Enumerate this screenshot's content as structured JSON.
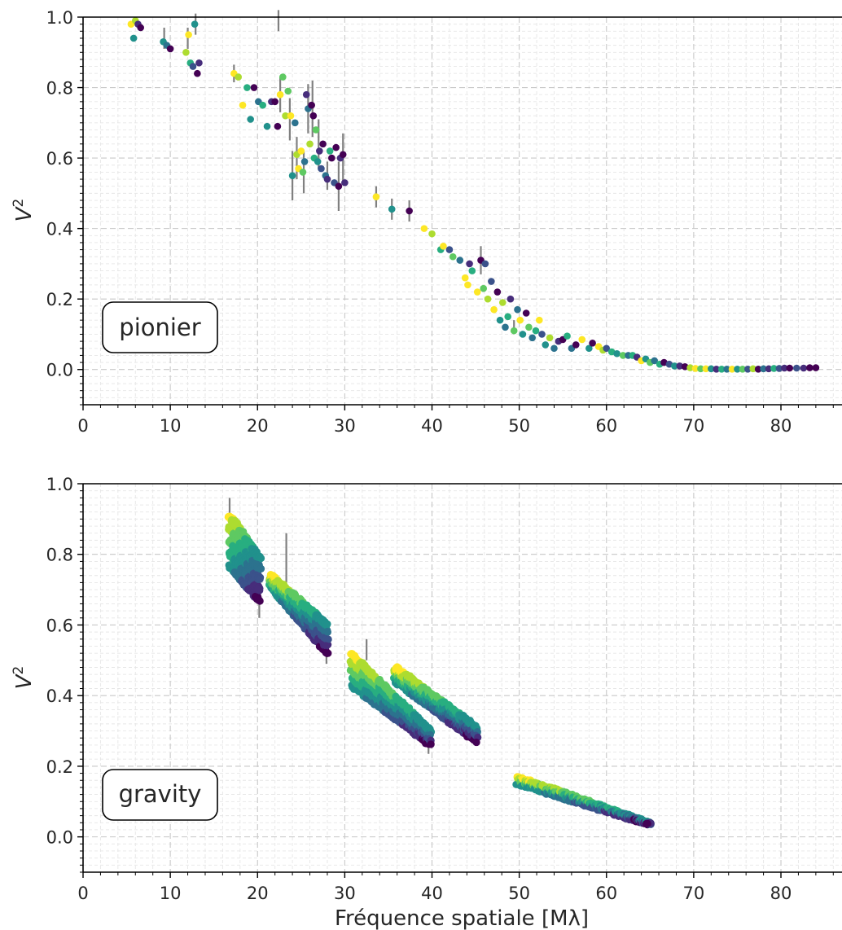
{
  "colors": {
    "errorbar": "#808080",
    "grid_major": "#c8c8c8",
    "grid_minor": "#e6e6e6",
    "axis": "#000000",
    "viridis": [
      "#440154",
      "#472d7b",
      "#3b528b",
      "#2c728e",
      "#21918c",
      "#28ae80",
      "#5ec962",
      "#addc30",
      "#fde725"
    ]
  },
  "chart_data": [
    {
      "type": "scatter",
      "annotation": "pionier",
      "ylabel": "V²",
      "xlabel": "",
      "xlim": [
        0,
        87
      ],
      "ylim": [
        -0.1,
        1.0
      ],
      "x_ticks": [
        "0",
        "10",
        "20",
        "30",
        "40",
        "50",
        "60",
        "70",
        "80"
      ],
      "y_ticks": [
        "0.0",
        "0.2",
        "0.4",
        "0.6",
        "0.8",
        "1.0"
      ],
      "grid": true,
      "colormap": "viridis",
      "points": [
        [
          5.5,
          0.98,
          8
        ],
        [
          5.8,
          0.94,
          4
        ],
        [
          6.0,
          0.99,
          7
        ],
        [
          6.3,
          0.98,
          1
        ],
        [
          6.6,
          0.97,
          0
        ],
        [
          9.2,
          0.93,
          4
        ],
        [
          9.6,
          0.92,
          3
        ],
        [
          10.0,
          0.91,
          0
        ],
        [
          11.8,
          0.9,
          7
        ],
        [
          12.1,
          0.95,
          8
        ],
        [
          12.3,
          0.87,
          5
        ],
        [
          12.6,
          0.86,
          2
        ],
        [
          12.8,
          0.98,
          4
        ],
        [
          13.1,
          0.84,
          0
        ],
        [
          13.3,
          0.87,
          1
        ],
        [
          17.3,
          0.84,
          8
        ],
        [
          17.8,
          0.83,
          7
        ],
        [
          18.3,
          0.75,
          8
        ],
        [
          18.8,
          0.8,
          5
        ],
        [
          19.2,
          0.71,
          4
        ],
        [
          19.6,
          0.8,
          0
        ],
        [
          20.1,
          0.76,
          3
        ],
        [
          20.6,
          0.75,
          5
        ],
        [
          21.1,
          0.69,
          4
        ],
        [
          21.6,
          0.76,
          1
        ],
        [
          22.0,
          0.76,
          0
        ],
        [
          22.3,
          0.69,
          0
        ],
        [
          22.6,
          0.78,
          8
        ],
        [
          22.9,
          0.83,
          6
        ],
        [
          23.2,
          0.72,
          7
        ],
        [
          23.5,
          0.79,
          6
        ],
        [
          23.8,
          0.72,
          8
        ],
        [
          24.0,
          0.55,
          4
        ],
        [
          24.3,
          0.7,
          3
        ],
        [
          24.5,
          0.61,
          7
        ],
        [
          24.7,
          0.57,
          8
        ],
        [
          25.0,
          0.62,
          8
        ],
        [
          25.2,
          0.56,
          6
        ],
        [
          25.4,
          0.59,
          3
        ],
        [
          25.6,
          0.78,
          1
        ],
        [
          25.8,
          0.74,
          3
        ],
        [
          26.0,
          0.64,
          7
        ],
        [
          26.2,
          0.75,
          0
        ],
        [
          26.4,
          0.72,
          0
        ],
        [
          26.5,
          0.6,
          5
        ],
        [
          26.7,
          0.68,
          6
        ],
        [
          26.9,
          0.59,
          4
        ],
        [
          27.1,
          0.62,
          1
        ],
        [
          27.3,
          0.57,
          2
        ],
        [
          27.5,
          0.64,
          0
        ],
        [
          27.8,
          0.55,
          3
        ],
        [
          28.0,
          0.54,
          1
        ],
        [
          28.3,
          0.62,
          5
        ],
        [
          28.5,
          0.6,
          0
        ],
        [
          28.8,
          0.53,
          2
        ],
        [
          29.0,
          0.63,
          0
        ],
        [
          29.3,
          0.52,
          0
        ],
        [
          29.5,
          0.6,
          1
        ],
        [
          29.8,
          0.61,
          0
        ],
        [
          30.0,
          0.53,
          1
        ],
        [
          33.6,
          0.49,
          8
        ],
        [
          35.4,
          0.455,
          4
        ],
        [
          37.4,
          0.45,
          0
        ],
        [
          39.1,
          0.4,
          8
        ],
        [
          40.0,
          0.385,
          7
        ],
        [
          41.0,
          0.34,
          5
        ],
        [
          41.3,
          0.35,
          8
        ],
        [
          42.0,
          0.34,
          2
        ],
        [
          42.4,
          0.32,
          6
        ],
        [
          43.2,
          0.31,
          3
        ],
        [
          43.8,
          0.26,
          8
        ],
        [
          44.1,
          0.24,
          8
        ],
        [
          44.3,
          0.3,
          1
        ],
        [
          44.6,
          0.28,
          5
        ],
        [
          45.2,
          0.22,
          8
        ],
        [
          45.6,
          0.31,
          0
        ],
        [
          45.9,
          0.23,
          6
        ],
        [
          46.1,
          0.3,
          2
        ],
        [
          46.4,
          0.2,
          7
        ],
        [
          46.8,
          0.25,
          2
        ],
        [
          47.1,
          0.17,
          8
        ],
        [
          47.5,
          0.22,
          0
        ],
        [
          47.8,
          0.14,
          4
        ],
        [
          48.1,
          0.19,
          7
        ],
        [
          48.4,
          0.12,
          3
        ],
        [
          48.7,
          0.15,
          5
        ],
        [
          49.0,
          0.2,
          1
        ],
        [
          49.4,
          0.11,
          6
        ],
        [
          49.8,
          0.17,
          3
        ],
        [
          50.1,
          0.14,
          8
        ],
        [
          50.4,
          0.1,
          4
        ],
        [
          50.8,
          0.16,
          0
        ],
        [
          51.1,
          0.12,
          6
        ],
        [
          51.5,
          0.09,
          3
        ],
        [
          51.9,
          0.11,
          5
        ],
        [
          52.3,
          0.14,
          8
        ],
        [
          52.6,
          0.1,
          2
        ],
        [
          53.0,
          0.07,
          4
        ],
        [
          53.5,
          0.09,
          7
        ],
        [
          54.0,
          0.06,
          3
        ],
        [
          54.5,
          0.08,
          1
        ],
        [
          55.0,
          0.085,
          0
        ],
        [
          55.5,
          0.095,
          5
        ],
        [
          56.0,
          0.06,
          3
        ],
        [
          56.5,
          0.07,
          0
        ],
        [
          57.2,
          0.085,
          8
        ],
        [
          58.0,
          0.06,
          4
        ],
        [
          58.4,
          0.075,
          0
        ],
        [
          59.1,
          0.065,
          8
        ],
        [
          59.6,
          0.055,
          7
        ],
        [
          60.0,
          0.06,
          2
        ],
        [
          60.6,
          0.05,
          5
        ],
        [
          61.2,
          0.045,
          4
        ],
        [
          61.9,
          0.04,
          6
        ],
        [
          62.5,
          0.04,
          3
        ],
        [
          63.0,
          0.04,
          5
        ],
        [
          63.5,
          0.035,
          1
        ],
        [
          64.0,
          0.025,
          8
        ],
        [
          64.5,
          0.03,
          4
        ],
        [
          65.0,
          0.02,
          6
        ],
        [
          65.5,
          0.025,
          3
        ],
        [
          66.1,
          0.015,
          5
        ],
        [
          66.6,
          0.02,
          0
        ],
        [
          67.2,
          0.015,
          2
        ],
        [
          67.8,
          0.01,
          4
        ],
        [
          68.4,
          0.01,
          1
        ],
        [
          69.0,
          0.008,
          0
        ],
        [
          69.6,
          0.005,
          7
        ],
        [
          70.2,
          0.003,
          8
        ],
        [
          70.8,
          0.002,
          6
        ],
        [
          71.4,
          0.002,
          8
        ],
        [
          72.0,
          0.002,
          4
        ],
        [
          72.6,
          0.001,
          1
        ],
        [
          73.2,
          0.001,
          5
        ],
        [
          73.8,
          0.001,
          3
        ],
        [
          74.4,
          0.001,
          8
        ],
        [
          75.0,
          0.001,
          4
        ],
        [
          75.6,
          0.001,
          6
        ],
        [
          76.2,
          0.001,
          2
        ],
        [
          76.8,
          0.002,
          7
        ],
        [
          77.4,
          0.001,
          0
        ],
        [
          78.0,
          0.002,
          3
        ],
        [
          78.6,
          0.002,
          1
        ],
        [
          79.2,
          0.003,
          5
        ],
        [
          79.8,
          0.003,
          2
        ],
        [
          80.4,
          0.004,
          1
        ],
        [
          81.0,
          0.004,
          0
        ],
        [
          81.8,
          0.004,
          2
        ],
        [
          82.6,
          0.004,
          1
        ],
        [
          83.3,
          0.005,
          0
        ],
        [
          84.0,
          0.005,
          0
        ]
      ],
      "errorbars": [
        [
          9.3,
          0.94,
          0.03
        ],
        [
          12.0,
          0.94,
          0.03
        ],
        [
          12.9,
          0.98,
          0.03
        ],
        [
          17.3,
          0.84,
          0.025
        ],
        [
          22.4,
          0.99,
          0.03
        ],
        [
          22.6,
          0.78,
          0.05
        ],
        [
          23.7,
          0.71,
          0.06
        ],
        [
          24.0,
          0.55,
          0.07
        ],
        [
          24.5,
          0.6,
          0.06
        ],
        [
          25.3,
          0.56,
          0.06
        ],
        [
          25.8,
          0.74,
          0.07
        ],
        [
          26.3,
          0.74,
          0.08
        ],
        [
          27.0,
          0.64,
          0.07
        ],
        [
          28.0,
          0.55,
          0.04
        ],
        [
          29.3,
          0.52,
          0.07
        ],
        [
          29.8,
          0.6,
          0.07
        ],
        [
          33.6,
          0.49,
          0.03
        ],
        [
          35.4,
          0.455,
          0.03
        ],
        [
          37.4,
          0.45,
          0.03
        ],
        [
          45.6,
          0.31,
          0.04
        ],
        [
          49.4,
          0.12,
          0.02
        ]
      ]
    },
    {
      "type": "scatter",
      "annotation": "gravity",
      "ylabel": "V²",
      "xlabel": "Fréquence spatiale [Mλ]",
      "xlim": [
        0,
        87
      ],
      "ylim": [
        -0.1,
        1.0
      ],
      "x_ticks": [
        "0",
        "10",
        "20",
        "30",
        "40",
        "50",
        "60",
        "70",
        "80"
      ],
      "y_ticks": [
        "0.0",
        "0.2",
        "0.4",
        "0.6",
        "0.8",
        "1.0"
      ],
      "grid": true,
      "colormap": "viridis",
      "streaks": [
        {
          "x": [
            16.8,
            20.2
          ],
          "y_start": [
            0.91,
            0.79
          ],
          "y_end": [
            0.77,
            0.67
          ],
          "c_start": 8,
          "c_end": 0
        },
        {
          "x": [
            21.5,
            28.0
          ],
          "y_start": [
            0.74,
            0.6
          ],
          "y_end": [
            0.71,
            0.52
          ],
          "c_start": 8,
          "c_end": 0
        },
        {
          "x": [
            30.7,
            39.8
          ],
          "y_start": [
            0.52,
            0.3
          ],
          "y_end": [
            0.43,
            0.26
          ],
          "c_start": 8,
          "c_end": 0
        },
        {
          "x": [
            35.8,
            45.1
          ],
          "y_start": [
            0.48,
            0.31
          ],
          "y_end": [
            0.44,
            0.27
          ],
          "c_start": 8,
          "c_end": 0
        },
        {
          "x": [
            49.8,
            64.9
          ],
          "y_start": [
            0.17,
            0.04
          ],
          "y_end": [
            0.15,
            0.035
          ],
          "c_start": 8,
          "c_end": 0
        }
      ],
      "errorbars": [
        [
          16.8,
          0.91,
          0.05
        ],
        [
          20.2,
          0.67,
          0.05
        ],
        [
          23.3,
          0.79,
          0.07
        ],
        [
          27.9,
          0.52,
          0.03
        ],
        [
          30.9,
          0.45,
          0.04
        ],
        [
          32.5,
          0.53,
          0.03
        ],
        [
          39.6,
          0.26,
          0.025
        ],
        [
          44.9,
          0.29,
          0.03
        ]
      ]
    }
  ]
}
